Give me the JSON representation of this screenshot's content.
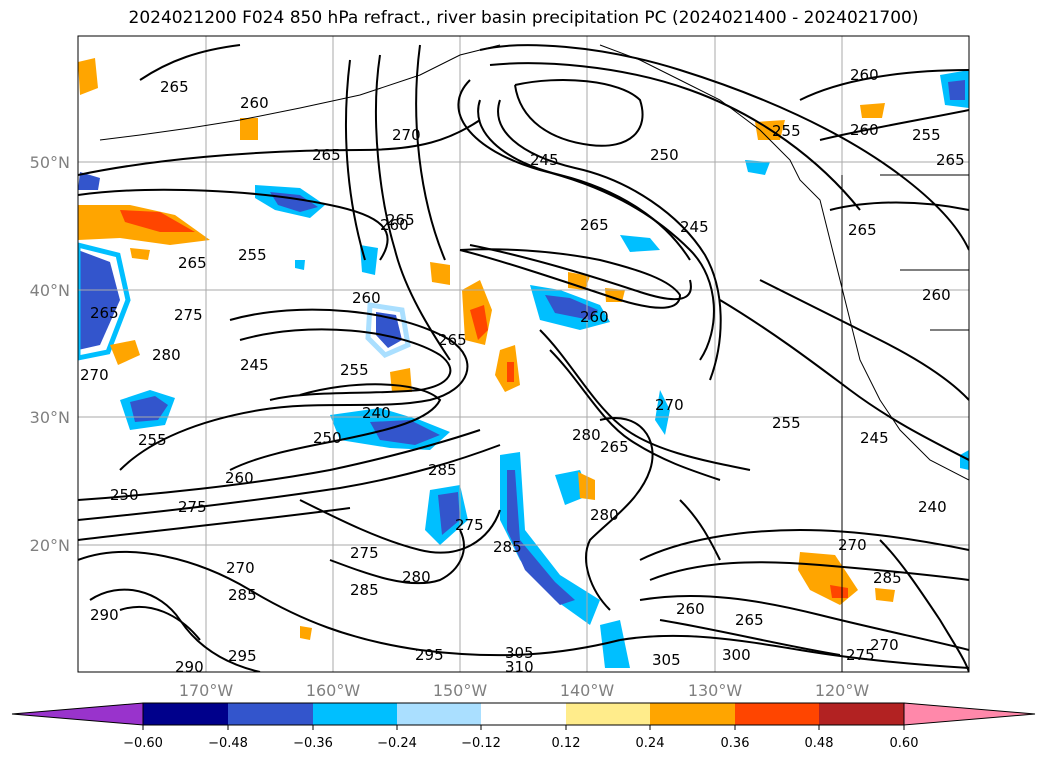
{
  "title": "2024021200 F024 850 hPa refract., river basin precipitation PC (2024021400 - 2024021700)",
  "map": {
    "lat_labels": [
      "50°N",
      "40°N",
      "30°N",
      "20°N"
    ],
    "lon_labels": [
      "170°W",
      "160°W",
      "150°W",
      "140°W",
      "130°W",
      "120°W"
    ],
    "contour_labels": [
      "265",
      "260",
      "270",
      "265",
      "245",
      "250",
      "260",
      "255",
      "260",
      "255",
      "265",
      "255",
      "265",
      "260",
      "265",
      "245",
      "265",
      "260",
      "275",
      "280",
      "270",
      "265",
      "255",
      "260",
      "245",
      "265",
      "255",
      "245",
      "240",
      "250",
      "255",
      "250",
      "260",
      "275",
      "285",
      "280",
      "265",
      "270",
      "280",
      "275",
      "270",
      "275",
      "285",
      "285",
      "280",
      "285",
      "270",
      "285",
      "265",
      "260",
      "295",
      "305",
      "310",
      "305",
      "300",
      "275",
      "270",
      "295",
      "290",
      "290",
      "240",
      "260",
      "265"
    ]
  },
  "colorbar": {
    "ticks": [
      "−0.60",
      "−0.48",
      "−0.36",
      "−0.24",
      "−0.12",
      "0.12",
      "0.24",
      "0.36",
      "0.48",
      "0.60"
    ],
    "colors": [
      "#9933cc",
      "#00008b",
      "#3355cc",
      "#00bfff",
      "#aadfff",
      "#ffffff",
      "#ffec8b",
      "#ffa500",
      "#ff4500",
      "#b22222",
      "#ff88aa"
    ]
  }
}
